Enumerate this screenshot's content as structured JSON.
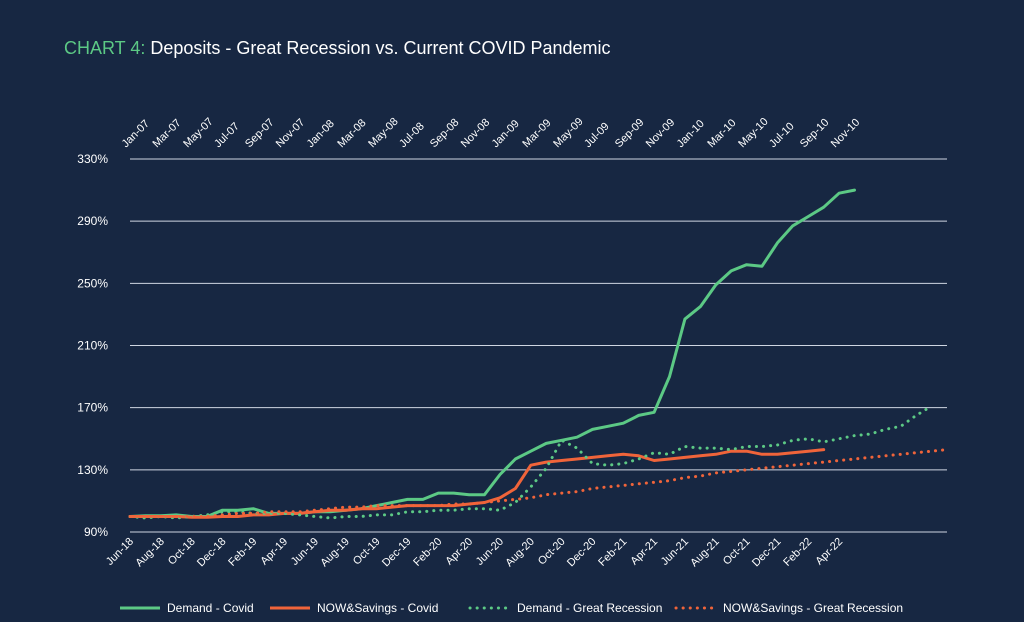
{
  "title": {
    "prefix": "CHART 4:",
    "text": "Deposits - Great Recession vs. Current COVID Pandemic"
  },
  "chart_data": {
    "type": "line",
    "ylim": [
      90,
      330
    ],
    "yticks": [
      90,
      130,
      170,
      210,
      250,
      290,
      330
    ],
    "ytick_labels": [
      "90%",
      "130%",
      "170%",
      "210%",
      "250%",
      "290%",
      "330%"
    ],
    "grid": true,
    "legend_position": "bottom",
    "bottom_axis_labels": [
      "Jun-18",
      "Aug-18",
      "Oct-18",
      "Dec-18",
      "Feb-19",
      "Apr-19",
      "Jun-19",
      "Aug-19",
      "Oct-19",
      "Dec-19",
      "Feb-20",
      "Apr-20",
      "Jun-20",
      "Aug-20",
      "Oct-20",
      "Dec-20",
      "Feb-21",
      "Apr-21",
      "Jun-21",
      "Aug-21",
      "Oct-21",
      "Dec-21",
      "Feb-22",
      "Apr-22"
    ],
    "top_axis_labels": [
      "Jan-07",
      "Mar-07",
      "May-07",
      "Jul-07",
      "Sep-07",
      "Nov-07",
      "Jan-08",
      "Mar-08",
      "May-08",
      "Jul-08",
      "Sep-08",
      "Nov-08",
      "Jan-09",
      "Mar-09",
      "May-09",
      "Jul-09",
      "Sep-09",
      "Nov-09",
      "Jan-10",
      "Mar-10",
      "May-10",
      "Jul-10",
      "Sep-10",
      "Nov-10"
    ],
    "series": [
      {
        "name": "Demand - Covid",
        "color": "#5cc985",
        "style": "solid",
        "values": [
          100,
          100.5,
          100.5,
          101,
          100,
          100,
          104,
          104,
          105,
          102,
          102,
          102,
          103,
          103,
          104,
          105,
          107,
          109,
          111,
          111,
          115,
          115,
          114,
          114,
          127,
          137,
          142,
          147,
          149,
          151,
          156,
          158,
          160,
          165,
          167,
          190,
          227,
          235,
          249,
          258,
          262,
          261,
          276,
          287,
          293,
          299,
          308,
          310
        ]
      },
      {
        "name": "NOW&Savings - Covid",
        "color": "#f0643a",
        "style": "solid",
        "values": [
          100,
          100,
          100,
          100,
          99.5,
          99.5,
          100,
          100,
          101,
          101,
          102,
          102,
          103,
          104,
          104,
          105,
          105,
          106,
          107,
          107,
          107,
          107,
          108,
          109,
          112,
          118,
          133,
          135,
          136,
          137,
          138,
          139,
          140,
          139,
          136,
          137,
          138,
          139,
          140,
          142,
          142,
          140,
          140,
          141,
          142,
          143
        ]
      },
      {
        "name": "Demand - Great Recession",
        "color": "#5cc985",
        "style": "dotted",
        "values": [
          100,
          99,
          100,
          99,
          100,
          101,
          103,
          103,
          102,
          102,
          102,
          101,
          100,
          99,
          100,
          100,
          101,
          101,
          103,
          103,
          104,
          104,
          105,
          105,
          104,
          109,
          119,
          131,
          149,
          144,
          134,
          133,
          134,
          137,
          141,
          140,
          145,
          144,
          144,
          143,
          145,
          145,
          146,
          149,
          150,
          148,
          150,
          152,
          153,
          156,
          158,
          165,
          171
        ]
      },
      {
        "name": "NOW&Savings - Great Recession",
        "color": "#f0643a",
        "style": "dotted",
        "values": [
          100,
          100,
          100,
          100,
          100,
          100,
          101,
          102,
          102,
          103,
          103,
          103,
          104,
          105,
          106,
          106,
          107,
          107,
          107,
          107,
          107,
          108,
          108,
          109,
          110,
          111,
          112,
          114,
          115,
          116,
          118,
          119,
          120,
          121,
          122,
          123,
          125,
          126,
          128,
          129,
          130,
          131,
          132,
          133,
          134,
          135,
          136,
          137,
          138,
          139,
          140,
          141,
          142,
          143
        ]
      }
    ]
  }
}
